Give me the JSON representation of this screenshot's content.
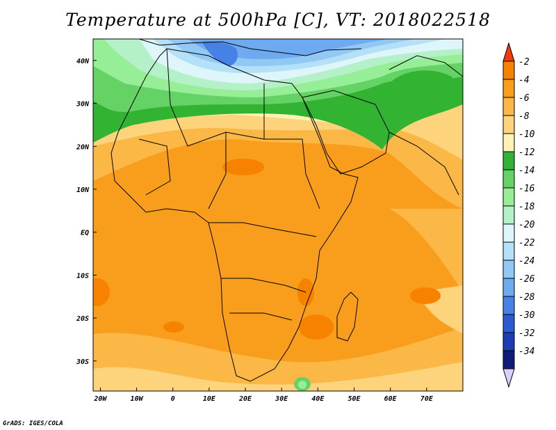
{
  "title": "Temperature at 500hPa [C], VT: 2018022518",
  "credit": "GrADS: IGES/COLA",
  "lat_labels": [
    "40N",
    "30N",
    "20N",
    "10N",
    "EQ",
    "10S",
    "20S",
    "30S"
  ],
  "lat_values": [
    40,
    30,
    20,
    10,
    0,
    -10,
    -20,
    -30
  ],
  "lon_labels": [
    "20W",
    "10W",
    "0",
    "10E",
    "20E",
    "30E",
    "40E",
    "50E",
    "60E",
    "70E"
  ],
  "lon_values": [
    -20,
    -10,
    0,
    10,
    20,
    30,
    40,
    50,
    60,
    70
  ],
  "extent": {
    "lon_min": -22,
    "lon_max": 80,
    "lat_min": -37,
    "lat_max": 45
  },
  "colorbar": {
    "labels": [
      "-2",
      "-4",
      "-6",
      "-8",
      "-10",
      "-12",
      "-14",
      "-16",
      "-18",
      "-20",
      "-22",
      "-24",
      "-26",
      "-28",
      "-30",
      "-32",
      "-34"
    ],
    "colors": [
      "#f03c0a",
      "#f78200",
      "#f99e1c",
      "#fbb846",
      "#fdd47c",
      "#fff2b4",
      "#32b432",
      "#64d264",
      "#96ee96",
      "#b4f0c8",
      "#def6fa",
      "#b4e0f8",
      "#92c8f4",
      "#6eaaf0",
      "#4682e6",
      "#2c5ad2",
      "#1e3cb4",
      "#0e1e78",
      "#d6d2fa"
    ]
  },
  "field_colors": {
    "land_outline": "#000000"
  }
}
